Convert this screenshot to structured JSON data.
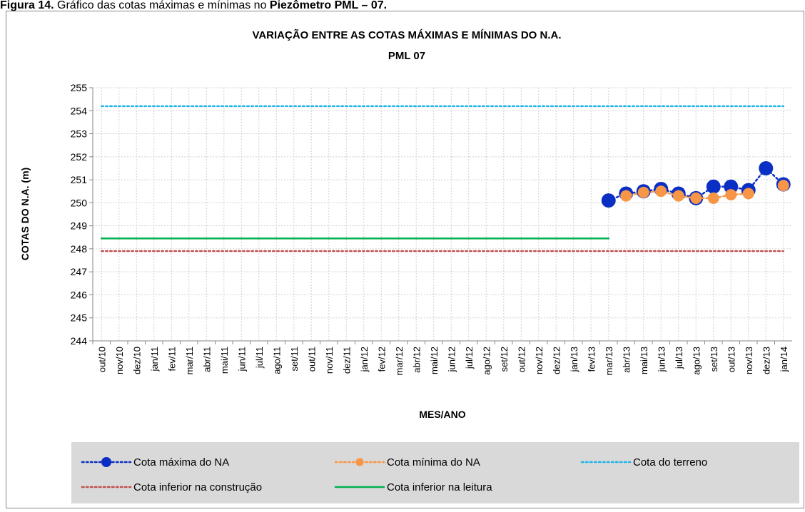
{
  "caption": [
    "Figura 14.",
    " Gráfico das cotas máximas e mínimas no ",
    "Piezômetro PML – 07."
  ],
  "chart_data": {
    "type": "line",
    "title": [
      "VARIAÇÃO ENTRE AS COTAS MÁXIMAS E MÍNIMAS DO N.A.",
      "PML 07"
    ],
    "x_label": "MES/ANO",
    "y_label": "COTAS DO N.A. (m)",
    "categories": [
      "out/10",
      "nov/10",
      "dez/10",
      "jan/11",
      "fev/11",
      "mar/11",
      "abr/11",
      "mai/11",
      "jun/11",
      "jul/11",
      "ago/11",
      "set/11",
      "out/11",
      "nov/11",
      "dez/11",
      "jan/12",
      "fev/12",
      "mar/12",
      "abr/12",
      "mai/12",
      "jun/12",
      "jul/12",
      "ago/12",
      "set/12",
      "out/12",
      "nov/12",
      "dez/12",
      "jan/13",
      "fev/13",
      "mar/13",
      "abr/13",
      "mai/13",
      "jun/13",
      "jul/13",
      "ago/13",
      "set/13",
      "out/13",
      "nov/13",
      "dez/13",
      "jan/14"
    ],
    "ylim": [
      244,
      255
    ],
    "yticks": [
      244,
      245,
      246,
      247,
      248,
      249,
      250,
      251,
      252,
      253,
      254,
      255
    ],
    "grid": true,
    "series": [
      {
        "name": "Cota máxima do NA",
        "color": "#0a2fc4",
        "style": "dotted",
        "marker": 10,
        "values": [
          null,
          null,
          null,
          null,
          null,
          null,
          null,
          null,
          null,
          null,
          null,
          null,
          null,
          null,
          null,
          null,
          null,
          null,
          null,
          null,
          null,
          null,
          null,
          null,
          null,
          null,
          null,
          null,
          null,
          250.1,
          250.4,
          250.5,
          250.6,
          250.4,
          250.2,
          250.7,
          250.7,
          250.55,
          251.5,
          250.8
        ]
      },
      {
        "name": "Cota mínima do NA",
        "color": "#f79646",
        "style": "dotted",
        "marker": 8,
        "values": [
          null,
          null,
          null,
          null,
          null,
          null,
          null,
          null,
          null,
          null,
          null,
          null,
          null,
          null,
          null,
          null,
          null,
          null,
          null,
          null,
          null,
          null,
          null,
          null,
          null,
          null,
          null,
          null,
          null,
          null,
          250.3,
          250.45,
          250.5,
          250.3,
          250.2,
          250.2,
          250.35,
          250.4,
          null,
          250.75
        ]
      },
      {
        "name": "Cota do terreno",
        "color": "#1fb4ec",
        "style": "dotted",
        "marker": 0,
        "values": [
          254.2,
          254.2,
          254.2,
          254.2,
          254.2,
          254.2,
          254.2,
          254.2,
          254.2,
          254.2,
          254.2,
          254.2,
          254.2,
          254.2,
          254.2,
          254.2,
          254.2,
          254.2,
          254.2,
          254.2,
          254.2,
          254.2,
          254.2,
          254.2,
          254.2,
          254.2,
          254.2,
          254.2,
          254.2,
          254.2,
          254.2,
          254.2,
          254.2,
          254.2,
          254.2,
          254.2,
          254.2,
          254.2,
          254.2,
          254.2
        ]
      },
      {
        "name": "Cota inferior na construção",
        "color": "#c0504d",
        "style": "dotted",
        "marker": 0,
        "values": [
          247.9,
          247.9,
          247.9,
          247.9,
          247.9,
          247.9,
          247.9,
          247.9,
          247.9,
          247.9,
          247.9,
          247.9,
          247.9,
          247.9,
          247.9,
          247.9,
          247.9,
          247.9,
          247.9,
          247.9,
          247.9,
          247.9,
          247.9,
          247.9,
          247.9,
          247.9,
          247.9,
          247.9,
          247.9,
          247.9,
          247.9,
          247.9,
          247.9,
          247.9,
          247.9,
          247.9,
          247.9,
          247.9,
          247.9,
          247.9
        ]
      },
      {
        "name": "Cota inferior na leitura",
        "color": "#00b050",
        "style": "solid",
        "marker": 0,
        "values": [
          248.45,
          248.45,
          248.45,
          248.45,
          248.45,
          248.45,
          248.45,
          248.45,
          248.45,
          248.45,
          248.45,
          248.45,
          248.45,
          248.45,
          248.45,
          248.45,
          248.45,
          248.45,
          248.45,
          248.45,
          248.45,
          248.45,
          248.45,
          248.45,
          248.45,
          248.45,
          248.45,
          248.45,
          248.45,
          248.45,
          null,
          null,
          null,
          null,
          null,
          null,
          null,
          null,
          null,
          null
        ]
      }
    ]
  }
}
